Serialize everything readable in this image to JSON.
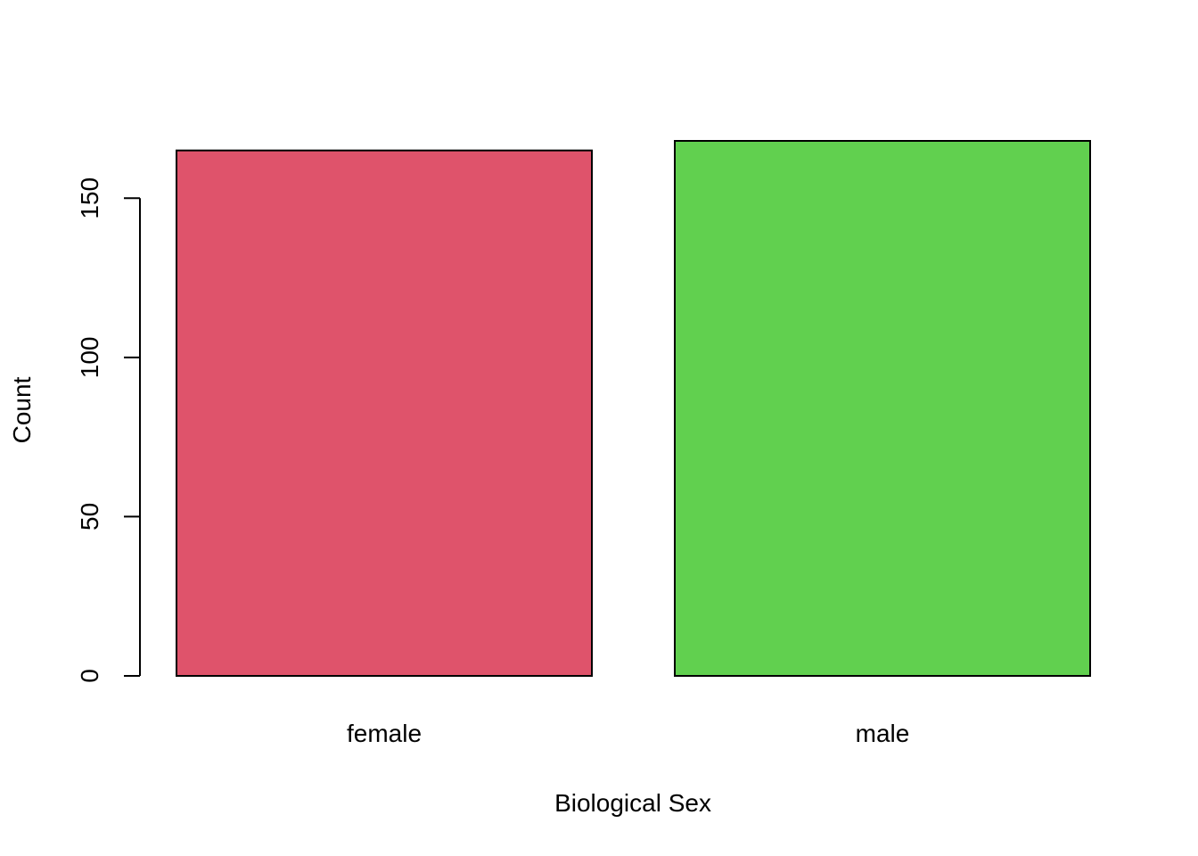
{
  "chart_data": {
    "type": "bar",
    "title": "",
    "xlabel": "Biological Sex",
    "ylabel": "Count",
    "categories": [
      "female",
      "male"
    ],
    "values": [
      165,
      168
    ],
    "colors": [
      "#DF536B",
      "#61D04F"
    ],
    "ylim": [
      0,
      168
    ],
    "yticks": [
      0,
      50,
      100,
      150
    ],
    "ytick_labels": [
      "0",
      "50",
      "100",
      "150"
    ],
    "grid": false,
    "legend": "none"
  }
}
